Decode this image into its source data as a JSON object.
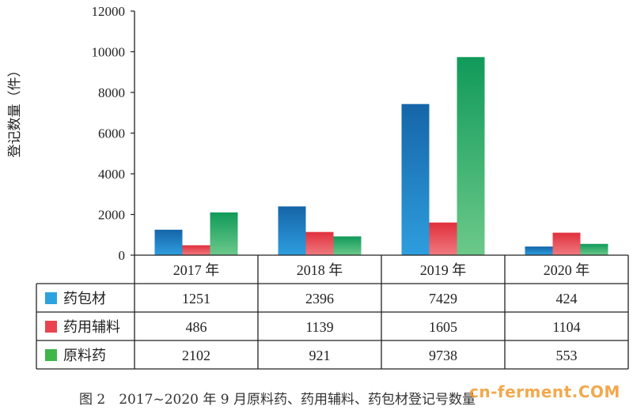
{
  "chart_data": {
    "type": "bar",
    "title": "",
    "ylabel": "登记数量（件）",
    "xlabel": "",
    "ylim": [
      0,
      12000
    ],
    "yticks": [
      0,
      2000,
      4000,
      6000,
      8000,
      10000,
      12000
    ],
    "categories": [
      "2017 年",
      "2018 年",
      "2019 年",
      "2020 年"
    ],
    "series": [
      {
        "name": "药包材",
        "values": [
          1251,
          2396,
          7429,
          424
        ],
        "color": "#1a7fc4",
        "legend_color": "#2ca2df"
      },
      {
        "name": "药用辅料",
        "values": [
          486,
          1139,
          1605,
          1104
        ],
        "color": "#e8434e",
        "legend_color": "#e8434e"
      },
      {
        "name": "原料药",
        "values": [
          2102,
          921,
          9738,
          553
        ],
        "color": "#1ea66a",
        "legend_color": "#3fb54a"
      }
    ],
    "legend_position": "table-left"
  },
  "caption": "图 2　2017~2020 年 9 月原料药、药用辅料、药包材登记号数量",
  "watermark": "cn-ferment.COM"
}
